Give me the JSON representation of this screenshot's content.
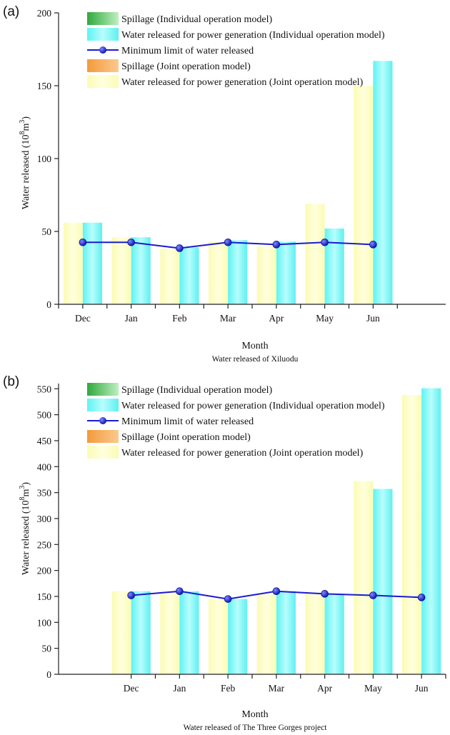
{
  "chart_data": [
    {
      "type": "bar",
      "panel_label": "(a)",
      "title": "Water released of Xiluodu",
      "xlabel": "Month",
      "ylabel": "Water released (10",
      "ylabel_sup": "8",
      "ylabel_unit": "m",
      "ylabel_sup2": "3",
      "ylabel_tail": ")",
      "categories": [
        "Dec",
        "Jan",
        "Feb",
        "Mar",
        "Apr",
        "May",
        "Jun"
      ],
      "ylim": [
        0,
        200
      ],
      "yticks": [
        0,
        50,
        100,
        150,
        200
      ],
      "grid": false,
      "legend_position": "top-left",
      "legend": [
        "Spillage (Individual operation model)",
        "Water released for power generation (Individual operation model)",
        "Minimum limit of  water released",
        "Spillage (Joint operation model)",
        "Water released for power generation (Joint operation model)"
      ],
      "series": [
        {
          "name": "Water released for power generation (Joint operation model)",
          "kind": "bar",
          "slot": "left",
          "color": "#fdfdc0",
          "values": [
            56,
            46,
            38,
            43,
            40,
            69,
            150
          ]
        },
        {
          "name": "Water released for power generation (Individual operation model)",
          "kind": "bar",
          "slot": "right",
          "color": "#7ff7f7",
          "values": [
            56,
            46,
            39,
            44,
            43,
            52,
            167
          ]
        },
        {
          "name": "Minimum limit of  water released",
          "kind": "line",
          "color": "#1a1ad0",
          "values": [
            42.5,
            42.5,
            38.5,
            42.5,
            41,
            42.5,
            41
          ]
        }
      ]
    },
    {
      "type": "bar",
      "panel_label": "(b)",
      "title": "Water released of The Three Gorges project",
      "xlabel": "Month",
      "ylabel": "Water released (10",
      "ylabel_sup": "8",
      "ylabel_unit": "m",
      "ylabel_sup2": "3",
      "ylabel_tail": ")",
      "categories": [
        "Dec",
        "Jan",
        "Feb",
        "Mar",
        "Apr",
        "May",
        "Jun"
      ],
      "ylim": [
        0,
        560
      ],
      "yticks": [
        0,
        50,
        100,
        150,
        200,
        250,
        300,
        350,
        400,
        450,
        500,
        550
      ],
      "grid": false,
      "legend_position": "top-left",
      "legend": [
        "Spillage (Individual operation model)",
        "Water released for power generation (Individual operation model)",
        "Minimum limit of  water released",
        "Spillage (Joint operation model)",
        "Water released for power generation (Joint operation model)"
      ],
      "series": [
        {
          "name": "Water released for power generation (Joint operation model)",
          "kind": "bar",
          "slot": "left",
          "color": "#fdfdc0",
          "values": [
            160,
            160,
            145,
            155,
            155,
            372,
            538
          ]
        },
        {
          "name": "Water released for power generation (Individual operation model)",
          "kind": "bar",
          "slot": "right",
          "color": "#7ff7f7",
          "values": [
            160,
            160,
            145,
            160,
            155,
            357,
            551
          ]
        },
        {
          "name": "Minimum limit of  water released",
          "kind": "line",
          "color": "#1a1ad0",
          "values": [
            152,
            160,
            145,
            160,
            155,
            152,
            148
          ]
        }
      ]
    }
  ],
  "legend_colors": {
    "spillage_individual": "#3cb84a",
    "power_individual": "#7ff7f7",
    "min_limit": "#1a1ad0",
    "spillage_joint": "#f6a94e",
    "power_joint": "#fdfdc0"
  }
}
